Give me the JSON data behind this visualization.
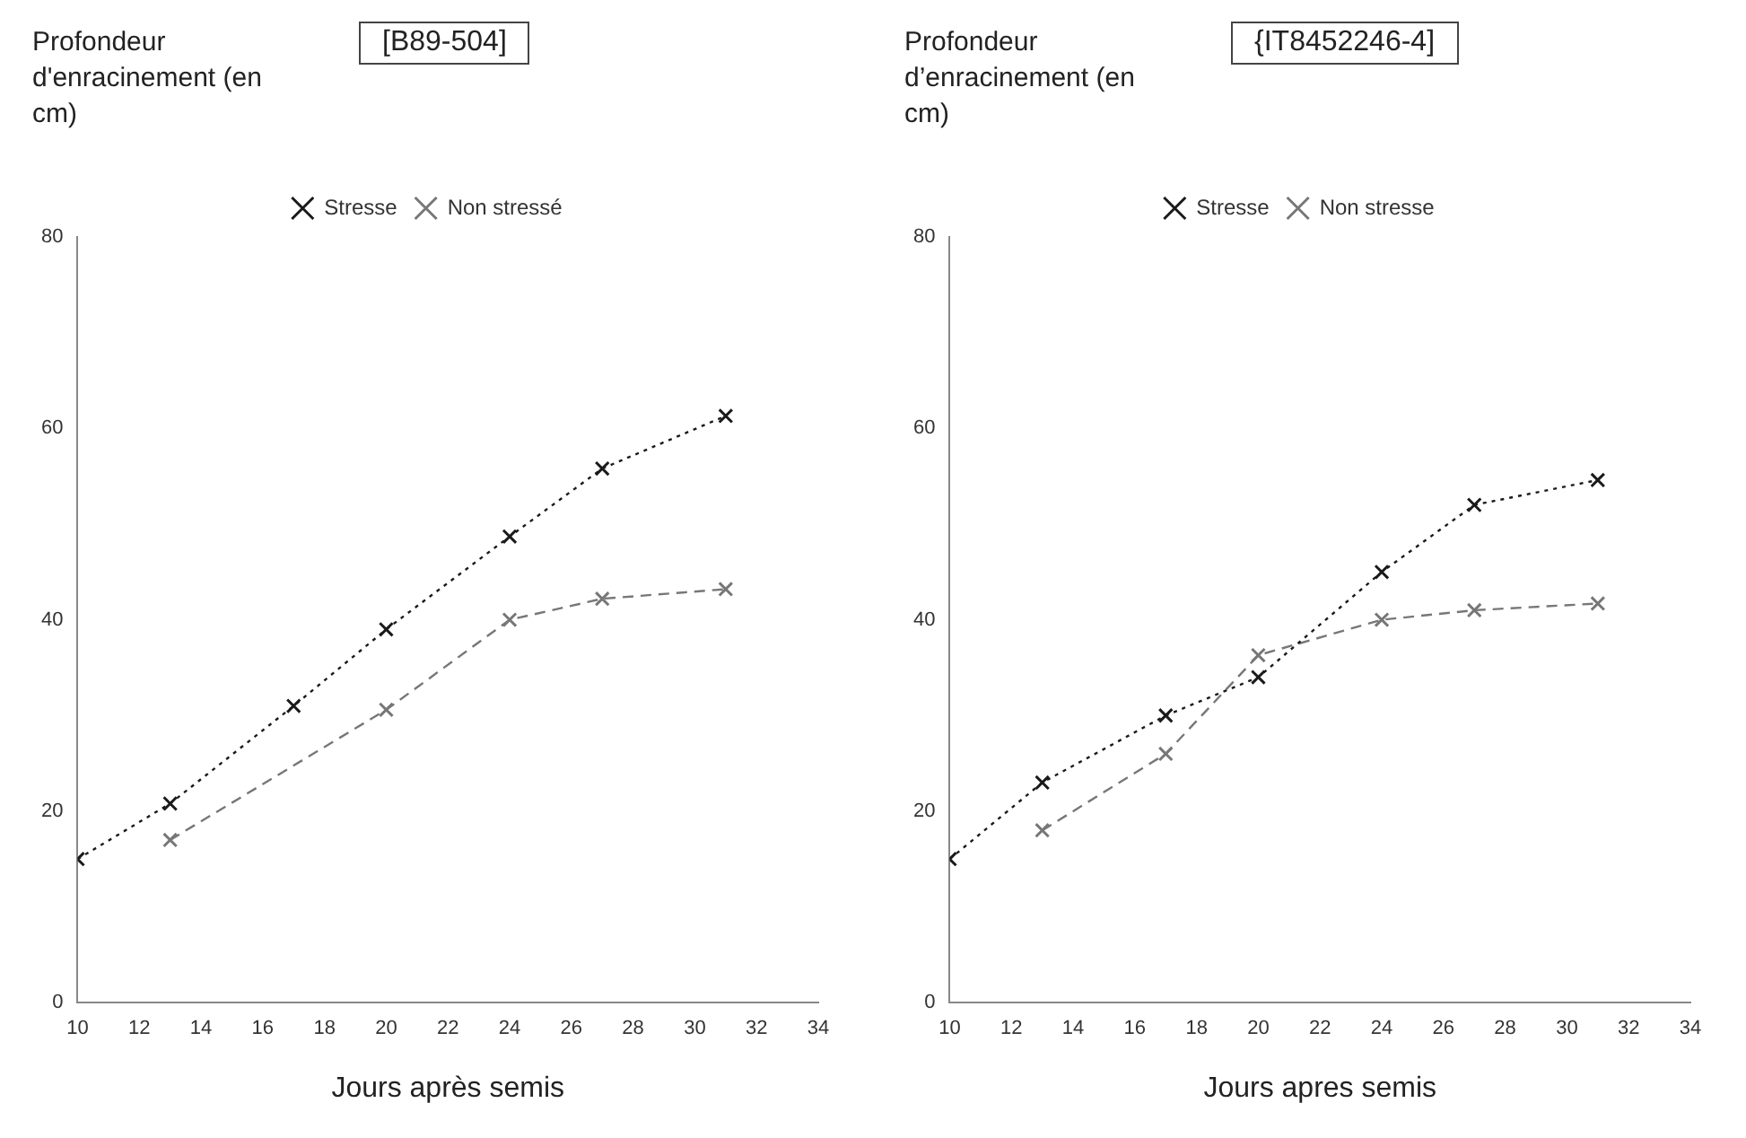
{
  "chart_data": [
    {
      "type": "line",
      "title": "[B89-504]",
      "ylabel": "Profondeur d'enracinement (en cm)",
      "xlabel": "Jours après semis",
      "xlim": [
        10,
        34
      ],
      "xticks": [
        10,
        12,
        14,
        16,
        18,
        20,
        22,
        24,
        26,
        28,
        30,
        32,
        34
      ],
      "ylim": [
        0,
        80
      ],
      "yticks": [
        0,
        20,
        40,
        60,
        80
      ],
      "grid": false,
      "legend": "top",
      "marker": "cross",
      "series": [
        {
          "name": "Stresse",
          "color": "#1a1a1a",
          "line_style": "dotted",
          "x": [
            10,
            13,
            17,
            20,
            24,
            27,
            31
          ],
          "values": [
            15,
            20.8,
            31,
            39,
            48.7,
            55.8,
            61.3
          ]
        },
        {
          "name": "Non stressé",
          "color": "#777777",
          "line_style": "dashed",
          "x": [
            13,
            20,
            24,
            27,
            31
          ],
          "values": [
            17,
            30.6,
            40,
            42.2,
            43.2
          ]
        }
      ]
    },
    {
      "type": "line",
      "title": "{IT8452246-4]",
      "ylabel": "Profondeur d’enracinement (en cm)",
      "xlabel": "Jours apres semis",
      "xlim": [
        10,
        34
      ],
      "xticks": [
        10,
        12,
        14,
        16,
        18,
        20,
        22,
        24,
        26,
        28,
        30,
        32,
        34
      ],
      "ylim": [
        0,
        80
      ],
      "yticks": [
        0,
        20,
        40,
        60,
        80
      ],
      "grid": false,
      "legend": "top",
      "marker": "cross",
      "series": [
        {
          "name": "Stresse",
          "color": "#1a1a1a",
          "line_style": "dotted",
          "x": [
            10,
            13,
            17,
            20,
            24,
            27,
            31
          ],
          "values": [
            15,
            23,
            30,
            34,
            45,
            52,
            54.6
          ]
        },
        {
          "name": "Non stresse",
          "color": "#777777",
          "line_style": "dashed",
          "x": [
            13,
            17,
            20,
            24,
            27,
            31
          ],
          "values": [
            18,
            26,
            36.3,
            40,
            41,
            41.7
          ]
        }
      ]
    }
  ]
}
